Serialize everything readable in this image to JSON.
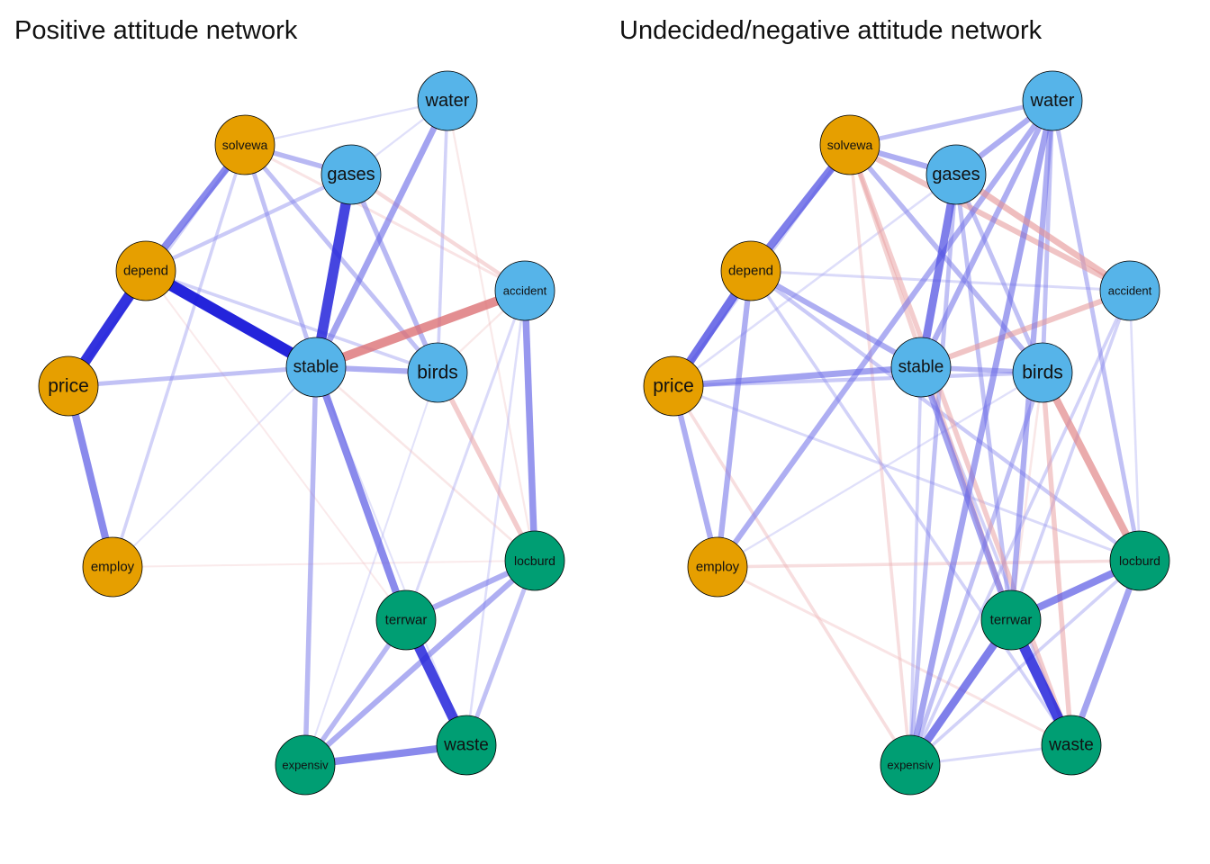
{
  "panels": [
    {
      "title": "Positive attitude network",
      "nodes": [
        {
          "id": "water",
          "label": "water",
          "group": "blue"
        },
        {
          "id": "solvewa",
          "label": "solvewa",
          "group": "orange"
        },
        {
          "id": "gases",
          "label": "gases",
          "group": "blue"
        },
        {
          "id": "depend",
          "label": "depend",
          "group": "orange"
        },
        {
          "id": "accident",
          "label": "accident",
          "group": "blue"
        },
        {
          "id": "stable",
          "label": "stable",
          "group": "blue"
        },
        {
          "id": "birds",
          "label": "birds",
          "group": "blue"
        },
        {
          "id": "price",
          "label": "price",
          "group": "orange"
        },
        {
          "id": "employ",
          "label": "employ",
          "group": "orange"
        },
        {
          "id": "locburd",
          "label": "locburd",
          "group": "green"
        },
        {
          "id": "terrwar",
          "label": "terrwar",
          "group": "green"
        },
        {
          "id": "waste",
          "label": "waste",
          "group": "green"
        },
        {
          "id": "expensiv",
          "label": "expensiv",
          "group": "green"
        }
      ],
      "edges": [
        {
          "source": "depend",
          "target": "stable",
          "weight": 0.9,
          "sign": "positive"
        },
        {
          "source": "depend",
          "target": "price",
          "weight": 0.85,
          "sign": "positive"
        },
        {
          "source": "gases",
          "target": "stable",
          "weight": 0.8,
          "sign": "positive"
        },
        {
          "source": "terrwar",
          "target": "waste",
          "weight": 0.8,
          "sign": "positive"
        },
        {
          "source": "stable",
          "target": "accident",
          "weight": 0.7,
          "sign": "negative"
        },
        {
          "source": "solvewa",
          "target": "depend",
          "weight": 0.55,
          "sign": "positive"
        },
        {
          "source": "price",
          "target": "employ",
          "weight": 0.55,
          "sign": "positive"
        },
        {
          "source": "stable",
          "target": "terrwar",
          "weight": 0.55,
          "sign": "positive"
        },
        {
          "source": "expensiv",
          "target": "waste",
          "weight": 0.55,
          "sign": "positive"
        },
        {
          "source": "accident",
          "target": "locburd",
          "weight": 0.5,
          "sign": "positive"
        },
        {
          "source": "water",
          "target": "stable",
          "weight": 0.45,
          "sign": "positive"
        },
        {
          "source": "locburd",
          "target": "terrwar",
          "weight": 0.4,
          "sign": "positive"
        },
        {
          "source": "locburd",
          "target": "expensiv",
          "weight": 0.4,
          "sign": "positive"
        },
        {
          "source": "birds",
          "target": "locburd",
          "weight": 0.35,
          "sign": "negative"
        },
        {
          "source": "stable",
          "target": "birds",
          "weight": 0.4,
          "sign": "positive"
        },
        {
          "source": "solvewa",
          "target": "gases",
          "weight": 0.35,
          "sign": "positive"
        },
        {
          "source": "gases",
          "target": "birds",
          "weight": 0.35,
          "sign": "positive"
        },
        {
          "source": "stable",
          "target": "expensiv",
          "weight": 0.35,
          "sign": "positive"
        },
        {
          "source": "solvewa",
          "target": "stable",
          "weight": 0.3,
          "sign": "positive"
        },
        {
          "source": "price",
          "target": "stable",
          "weight": 0.3,
          "sign": "positive"
        },
        {
          "source": "terrwar",
          "target": "expensiv",
          "weight": 0.35,
          "sign": "positive"
        },
        {
          "source": "locburd",
          "target": "waste",
          "weight": 0.3,
          "sign": "positive"
        },
        {
          "source": "solvewa",
          "target": "birds",
          "weight": 0.3,
          "sign": "positive"
        },
        {
          "source": "depend",
          "target": "gases",
          "weight": 0.25,
          "sign": "positive"
        },
        {
          "source": "water",
          "target": "birds",
          "weight": 0.2,
          "sign": "positive"
        },
        {
          "source": "solvewa",
          "target": "price",
          "weight": 0.2,
          "sign": "positive"
        },
        {
          "source": "solvewa",
          "target": "employ",
          "weight": 0.2,
          "sign": "positive"
        },
        {
          "source": "depend",
          "target": "birds",
          "weight": 0.2,
          "sign": "positive"
        },
        {
          "source": "gases",
          "target": "accident",
          "weight": 0.25,
          "sign": "negative"
        },
        {
          "source": "solvewa",
          "target": "accident",
          "weight": 0.15,
          "sign": "negative"
        },
        {
          "source": "water",
          "target": "solvewa",
          "weight": 0.1,
          "sign": "positive"
        },
        {
          "source": "water",
          "target": "gases",
          "weight": 0.1,
          "sign": "positive"
        },
        {
          "source": "water",
          "target": "locburd",
          "weight": 0.1,
          "sign": "negative"
        },
        {
          "source": "accident",
          "target": "terrwar",
          "weight": 0.15,
          "sign": "positive"
        },
        {
          "source": "accident",
          "target": "waste",
          "weight": 0.12,
          "sign": "positive"
        },
        {
          "source": "accident",
          "target": "birds",
          "weight": 0.1,
          "sign": "negative"
        },
        {
          "source": "stable",
          "target": "locburd",
          "weight": 0.12,
          "sign": "negative"
        },
        {
          "source": "stable",
          "target": "employ",
          "weight": 0.08,
          "sign": "positive"
        },
        {
          "source": "employ",
          "target": "locburd",
          "weight": 0.08,
          "sign": "negative"
        },
        {
          "source": "depend",
          "target": "terrwar",
          "weight": 0.08,
          "sign": "negative"
        },
        {
          "source": "birds",
          "target": "expensiv",
          "weight": 0.08,
          "sign": "positive"
        },
        {
          "source": "waste",
          "target": "stable",
          "weight": 0.08,
          "sign": "positive"
        }
      ]
    },
    {
      "title": "Undecided/negative attitude network",
      "nodes": [
        {
          "id": "water",
          "label": "water",
          "group": "blue"
        },
        {
          "id": "solvewa",
          "label": "solvewa",
          "group": "orange"
        },
        {
          "id": "gases",
          "label": "gases",
          "group": "blue"
        },
        {
          "id": "depend",
          "label": "depend",
          "group": "orange"
        },
        {
          "id": "accident",
          "label": "accident",
          "group": "blue"
        },
        {
          "id": "stable",
          "label": "stable",
          "group": "blue"
        },
        {
          "id": "birds",
          "label": "birds",
          "group": "blue"
        },
        {
          "id": "price",
          "label": "price",
          "group": "orange"
        },
        {
          "id": "employ",
          "label": "employ",
          "group": "orange"
        },
        {
          "id": "locburd",
          "label": "locburd",
          "group": "green"
        },
        {
          "id": "terrwar",
          "label": "terrwar",
          "group": "green"
        },
        {
          "id": "waste",
          "label": "waste",
          "group": "green"
        },
        {
          "id": "expensiv",
          "label": "expensiv",
          "group": "green"
        }
      ],
      "edges": [
        {
          "source": "terrwar",
          "target": "waste",
          "weight": 0.8,
          "sign": "positive"
        },
        {
          "source": "depend",
          "target": "price",
          "weight": 0.65,
          "sign": "positive"
        },
        {
          "source": "solvewa",
          "target": "depend",
          "weight": 0.6,
          "sign": "positive"
        },
        {
          "source": "gases",
          "target": "stable",
          "weight": 0.6,
          "sign": "positive"
        },
        {
          "source": "terrwar",
          "target": "expensiv",
          "weight": 0.6,
          "sign": "positive"
        },
        {
          "source": "terrwar",
          "target": "locburd",
          "weight": 0.55,
          "sign": "positive"
        },
        {
          "source": "birds",
          "target": "locburd",
          "weight": 0.55,
          "sign": "negative"
        },
        {
          "source": "price",
          "target": "stable",
          "weight": 0.45,
          "sign": "positive"
        },
        {
          "source": "stable",
          "target": "terrwar",
          "weight": 0.45,
          "sign": "positive"
        },
        {
          "source": "water",
          "target": "expensiv",
          "weight": 0.45,
          "sign": "positive"
        },
        {
          "source": "locburd",
          "target": "waste",
          "weight": 0.45,
          "sign": "positive"
        },
        {
          "source": "gases",
          "target": "accident",
          "weight": 0.45,
          "sign": "negative"
        },
        {
          "source": "solvewa",
          "target": "accident",
          "weight": 0.4,
          "sign": "negative"
        },
        {
          "source": "accident",
          "target": "stable",
          "weight": 0.4,
          "sign": "negative"
        },
        {
          "source": "water",
          "target": "gases",
          "weight": 0.4,
          "sign": "positive"
        },
        {
          "source": "water",
          "target": "stable",
          "weight": 0.4,
          "sign": "positive"
        },
        {
          "source": "water",
          "target": "employ",
          "weight": 0.4,
          "sign": "positive"
        },
        {
          "source": "water",
          "target": "terrwar",
          "weight": 0.4,
          "sign": "positive"
        },
        {
          "source": "depend",
          "target": "stable",
          "weight": 0.4,
          "sign": "positive"
        },
        {
          "source": "depend",
          "target": "employ",
          "weight": 0.4,
          "sign": "positive"
        },
        {
          "source": "price",
          "target": "employ",
          "weight": 0.4,
          "sign": "positive"
        },
        {
          "source": "solvewa",
          "target": "gases",
          "weight": 0.4,
          "sign": "positive"
        },
        {
          "source": "solvewa",
          "target": "birds",
          "weight": 0.35,
          "sign": "positive"
        },
        {
          "source": "solvewa",
          "target": "waste",
          "weight": 0.35,
          "sign": "negative"
        },
        {
          "source": "solvewa",
          "target": "terrwar",
          "weight": 0.3,
          "sign": "negative"
        },
        {
          "source": "stable",
          "target": "birds",
          "weight": 0.35,
          "sign": "positive"
        },
        {
          "source": "birds",
          "target": "waste",
          "weight": 0.35,
          "sign": "negative"
        },
        {
          "source": "birds",
          "target": "expensiv",
          "weight": 0.3,
          "sign": "positive"
        },
        {
          "source": "gases",
          "target": "birds",
          "weight": 0.3,
          "sign": "positive"
        },
        {
          "source": "water",
          "target": "birds",
          "weight": 0.3,
          "sign": "positive"
        },
        {
          "source": "water",
          "target": "solvewa",
          "weight": 0.3,
          "sign": "positive"
        },
        {
          "source": "water",
          "target": "locburd",
          "weight": 0.3,
          "sign": "positive"
        },
        {
          "source": "gases",
          "target": "expensiv",
          "weight": 0.3,
          "sign": "positive"
        },
        {
          "source": "gases",
          "target": "terrwar",
          "weight": 0.3,
          "sign": "positive"
        },
        {
          "source": "depend",
          "target": "locburd",
          "weight": 0.25,
          "sign": "positive"
        },
        {
          "source": "price",
          "target": "birds",
          "weight": 0.25,
          "sign": "positive"
        },
        {
          "source": "solvewa",
          "target": "price",
          "weight": 0.2,
          "sign": "positive"
        },
        {
          "source": "solvewa",
          "target": "expensiv",
          "weight": 0.2,
          "sign": "negative"
        },
        {
          "source": "stable",
          "target": "expensiv",
          "weight": 0.2,
          "sign": "positive"
        },
        {
          "source": "stable",
          "target": "waste",
          "weight": 0.2,
          "sign": "positive"
        },
        {
          "source": "depend",
          "target": "waste",
          "weight": 0.2,
          "sign": "positive"
        },
        {
          "source": "accident",
          "target": "expensiv",
          "weight": 0.2,
          "sign": "positive"
        },
        {
          "source": "accident",
          "target": "terrwar",
          "weight": 0.2,
          "sign": "positive"
        },
        {
          "source": "locburd",
          "target": "expensiv",
          "weight": 0.2,
          "sign": "positive"
        },
        {
          "source": "waste",
          "target": "expensiv",
          "weight": 0.15,
          "sign": "positive"
        },
        {
          "source": "employ",
          "target": "locburd",
          "weight": 0.2,
          "sign": "negative"
        },
        {
          "source": "price",
          "target": "expensiv",
          "weight": 0.2,
          "sign": "negative"
        },
        {
          "source": "employ",
          "target": "waste",
          "weight": 0.15,
          "sign": "negative"
        },
        {
          "source": "price",
          "target": "locburd",
          "weight": 0.15,
          "sign": "positive"
        },
        {
          "source": "depend",
          "target": "accident",
          "weight": 0.15,
          "sign": "positive"
        },
        {
          "source": "gases",
          "target": "price",
          "weight": 0.12,
          "sign": "positive"
        },
        {
          "source": "employ",
          "target": "birds",
          "weight": 0.1,
          "sign": "positive"
        },
        {
          "source": "accident",
          "target": "locburd",
          "weight": 0.12,
          "sign": "positive"
        },
        {
          "source": "birds",
          "target": "terrwar",
          "weight": 0.12,
          "sign": "negative"
        }
      ]
    }
  ],
  "colors": {
    "orange_node": "#E69F00",
    "blue_node": "#56B4E9",
    "green_node": "#009E73",
    "positive_edge": "#0000D5",
    "negative_edge": "#D2474A",
    "node_border": "#000000"
  }
}
